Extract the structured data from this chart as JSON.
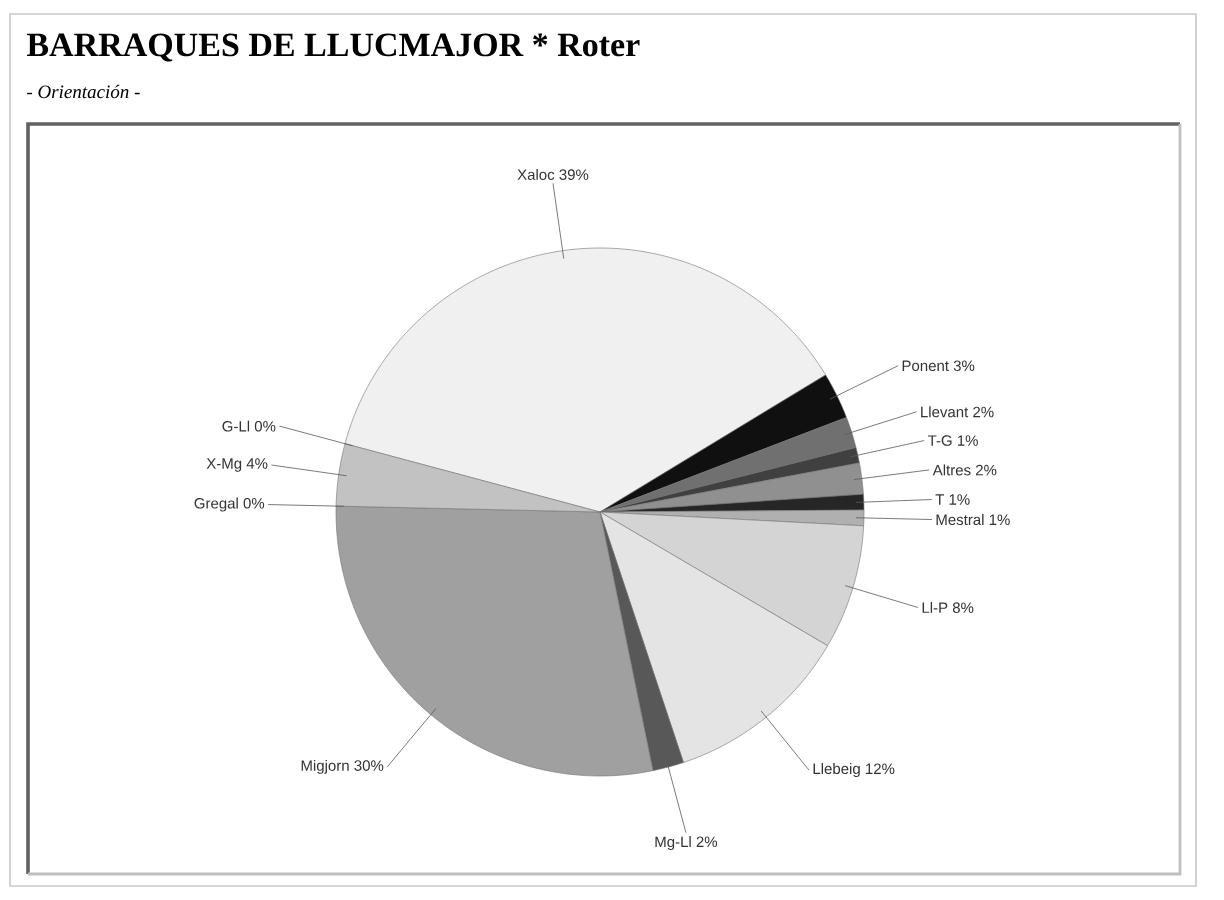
{
  "chart_data": {
    "type": "pie",
    "title": "BARRAQUES DE LLUCMAJOR * Roter",
    "subtitle": "- Orientación -",
    "categories": [
      "Xaloc",
      "Ponent",
      "Llevant",
      "T-G",
      "Altres",
      "T",
      "Mestral",
      "Ll-P",
      "Llebeig",
      "Mg-Ll",
      "Migjorn",
      "Gregal",
      "X-Mg",
      "G-Ll"
    ],
    "values": [
      39,
      3,
      2,
      1,
      2,
      1,
      1,
      8,
      12,
      2,
      30,
      0,
      4,
      0
    ],
    "value_labels": [
      "39%",
      "3%",
      "2%",
      "1%",
      "2%",
      "1%",
      "1%",
      "8%",
      "12%",
      "2%",
      "30%",
      "0%",
      "4%",
      "0%"
    ],
    "colors": [
      "#f0f0f0",
      "#101010",
      "#707070",
      "#404040",
      "#909090",
      "#262626",
      "#b0b0b0",
      "#d4d4d4",
      "#e4e4e4",
      "#585858",
      "#a0a0a0",
      "#c8c8c8",
      "#c2c2c2",
      "#b8b8b8"
    ]
  }
}
